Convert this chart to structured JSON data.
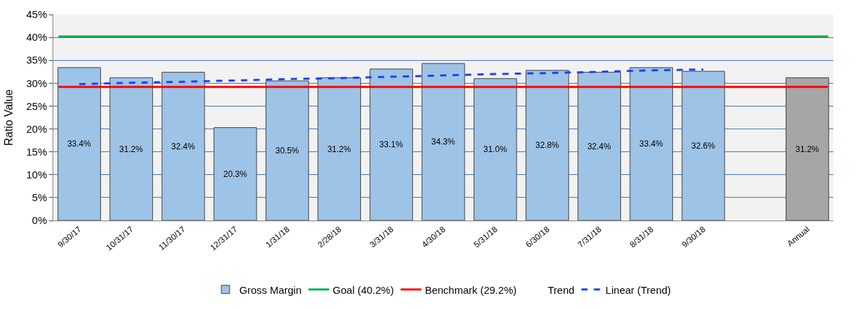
{
  "chart_data": {
    "type": "bar",
    "ylabel": "Ratio Value",
    "categories": [
      "9/30/17",
      "10/31/17",
      "11/30/17",
      "12/31/17",
      "1/31/18",
      "2/28/18",
      "3/31/18",
      "4/30/18",
      "5/31/18",
      "6/30/18",
      "7/31/18",
      "8/31/18",
      "9/30/18",
      null,
      "Annual"
    ],
    "series": [
      {
        "name": "Gross Margin",
        "values": [
          33.4,
          31.2,
          32.4,
          20.3,
          30.5,
          31.2,
          33.1,
          34.3,
          31.0,
          32.8,
          32.4,
          33.4,
          32.6,
          null,
          31.2
        ],
        "colors": [
          "#9dc3e6",
          "#9dc3e6",
          "#9dc3e6",
          "#9dc3e6",
          "#9dc3e6",
          "#9dc3e6",
          "#9dc3e6",
          "#9dc3e6",
          "#9dc3e6",
          "#9dc3e6",
          "#9dc3e6",
          "#9dc3e6",
          "#9dc3e6",
          "#9dc3e6",
          "#a6a6a6"
        ],
        "value_labels": [
          "33.4%",
          "31.2%",
          "32.4%",
          "20.3%",
          "30.5%",
          "31.2%",
          "33.1%",
          "34.3%",
          "31.0%",
          "32.8%",
          "32.4%",
          "33.4%",
          "32.6%",
          null,
          "31.2%"
        ]
      },
      {
        "name": "Trend",
        "type": "line",
        "values": [
          null,
          null,
          null,
          null,
          null,
          null,
          null,
          null,
          null,
          null,
          null,
          null,
          null,
          null,
          null
        ]
      },
      {
        "name": "Linear (Trend)",
        "type": "line",
        "color": "#1f3fff",
        "line_style": "dashed",
        "values": [
          29.8,
          30.1,
          30.3,
          30.6,
          30.9,
          31.1,
          31.4,
          31.7,
          32.0,
          32.2,
          32.5,
          32.8,
          33.0,
          null,
          null
        ]
      }
    ],
    "ref_lines": [
      {
        "axis": "y",
        "value": 40.2,
        "label": "Goal (40.2%)",
        "color": "#00b050"
      },
      {
        "axis": "y",
        "value": 29.2,
        "label": "Benchmark (29.2%)",
        "color": "#ff0000"
      }
    ],
    "ylim": [
      0,
      45
    ],
    "yticks": [
      {
        "value": 0,
        "label": "0%"
      },
      {
        "value": 5,
        "label": "5%"
      },
      {
        "value": 10,
        "label": "10%"
      },
      {
        "value": 15,
        "label": "15%"
      },
      {
        "value": 20,
        "label": "20%"
      },
      {
        "value": 25,
        "label": "25%"
      },
      {
        "value": 30,
        "label": "30%"
      },
      {
        "value": 35,
        "label": "35%"
      },
      {
        "value": 40,
        "label": "40%"
      },
      {
        "value": 45,
        "label": "45%"
      }
    ],
    "grid": "y",
    "legend": "bottom"
  }
}
